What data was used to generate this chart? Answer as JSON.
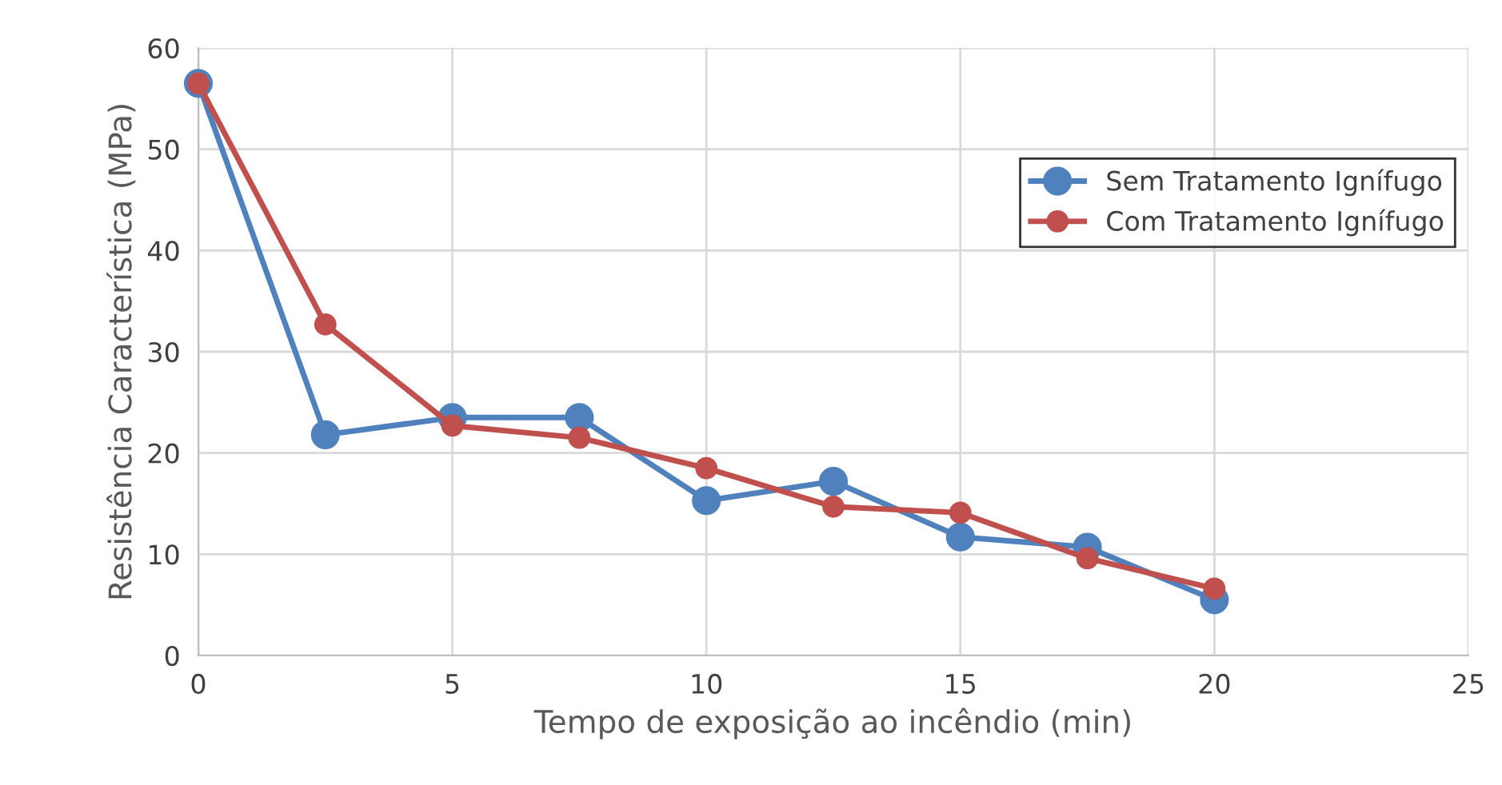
{
  "chart_data": {
    "type": "line",
    "xlabel": "Tempo de exposição ao incêndio (min)",
    "ylabel": "Resistência Característica (MPa)",
    "x": [
      0,
      2.5,
      5,
      7.5,
      10,
      12.5,
      15,
      17.5,
      20
    ],
    "series": [
      {
        "name": "Sem Tratamento Ignífugo",
        "color": "#4f81bd",
        "values": [
          56.5,
          21.8,
          23.5,
          23.5,
          15.3,
          17.2,
          11.7,
          10.7,
          5.5
        ]
      },
      {
        "name": "Com Tratamento Ignífugo",
        "color": "#c0504d",
        "values": [
          56.5,
          32.7,
          22.7,
          21.5,
          18.5,
          14.7,
          14.1,
          9.6,
          6.6
        ]
      }
    ],
    "xlim": [
      0,
      25
    ],
    "xticks": [
      0,
      5,
      10,
      15,
      20,
      25
    ],
    "ylim": [
      0,
      60
    ],
    "yticks": [
      0,
      10,
      20,
      30,
      40,
      50,
      60
    ],
    "grid": true,
    "legend": "top right",
    "marker": "circle",
    "line_style": "solid"
  }
}
